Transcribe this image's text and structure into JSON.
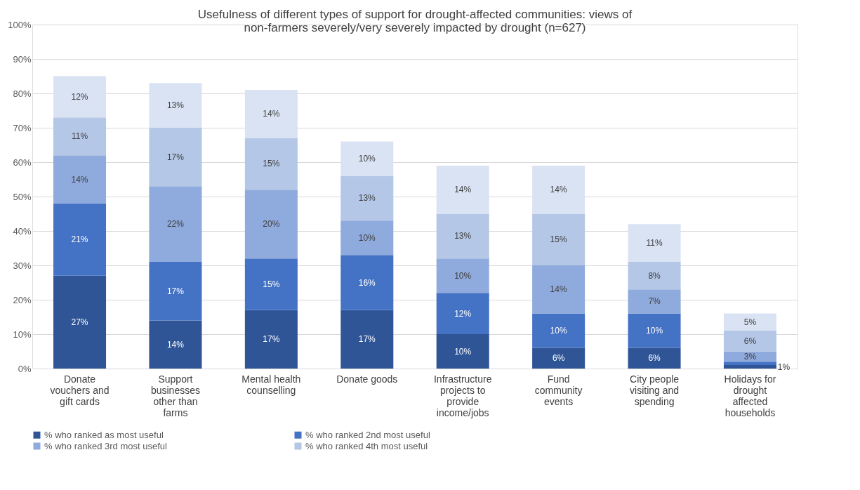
{
  "chart_data": {
    "type": "bar",
    "stacked": true,
    "title": "Usefulness of different types of support for drought-affected communities: views of\nnon-farmers severely/very severely impacted by drought (n=627)",
    "categories": [
      "Donate vouchers and gift cards",
      "Support businesses other than farms",
      "Mental health counselling",
      "Donate goods",
      "Infrastructure projects to provide income/jobs",
      "Fund community events",
      "City people visiting and spending",
      "Holidays for drought affected households"
    ],
    "series": [
      {
        "name": "% who ranked as most useful",
        "color": "#2f5597",
        "values": [
          27,
          14,
          17,
          17,
          10,
          6,
          6,
          1
        ],
        "value_labels": [
          "27%",
          "14%",
          "17%",
          "17%",
          "10%",
          "6%",
          "6%",
          "1%"
        ]
      },
      {
        "name": "% who ranked 2nd most useful",
        "color": "#4472c4",
        "values": [
          21,
          17,
          15,
          16,
          12,
          10,
          10,
          1
        ],
        "value_labels": [
          "21%",
          "17%",
          "15%",
          "16%",
          "12%",
          "10%",
          "10%",
          null
        ]
      },
      {
        "name": "% who ranked 3rd most useful",
        "color": "#8faadc",
        "values": [
          14,
          22,
          20,
          10,
          10,
          14,
          7,
          3
        ],
        "value_labels": [
          "14%",
          "22%",
          "20%",
          "10%",
          "10%",
          "14%",
          "7%",
          "3%"
        ]
      },
      {
        "name": "% who ranked 4th most useful",
        "color": "#b4c7e7",
        "values": [
          11,
          17,
          15,
          13,
          13,
          15,
          8,
          6
        ],
        "value_labels": [
          "11%",
          "17%",
          "15%",
          "13%",
          "13%",
          "15%",
          "8%",
          "6%"
        ]
      },
      {
        "color": "#dae3f3",
        "values": [
          12,
          13,
          14,
          10,
          14,
          14,
          11,
          5
        ],
        "value_labels": [
          "12%",
          "13%",
          "14%",
          "10%",
          "14%",
          "14%",
          "11%",
          "5%"
        ]
      }
    ],
    "ylim": [
      0,
      100
    ],
    "yticks": [
      {
        "value": 0,
        "label": "0%"
      },
      {
        "value": 10,
        "label": "10%"
      },
      {
        "value": 20,
        "label": "20%"
      },
      {
        "value": 30,
        "label": "30%"
      },
      {
        "value": 40,
        "label": "40%"
      },
      {
        "value": 50,
        "label": "50%"
      },
      {
        "value": 60,
        "label": "60%"
      },
      {
        "value": 70,
        "label": "70%"
      },
      {
        "value": 80,
        "label": "80%"
      },
      {
        "value": 90,
        "label": "90%"
      },
      {
        "value": 100,
        "label": "100%"
      }
    ],
    "grid": "y",
    "legend": "bottom"
  }
}
